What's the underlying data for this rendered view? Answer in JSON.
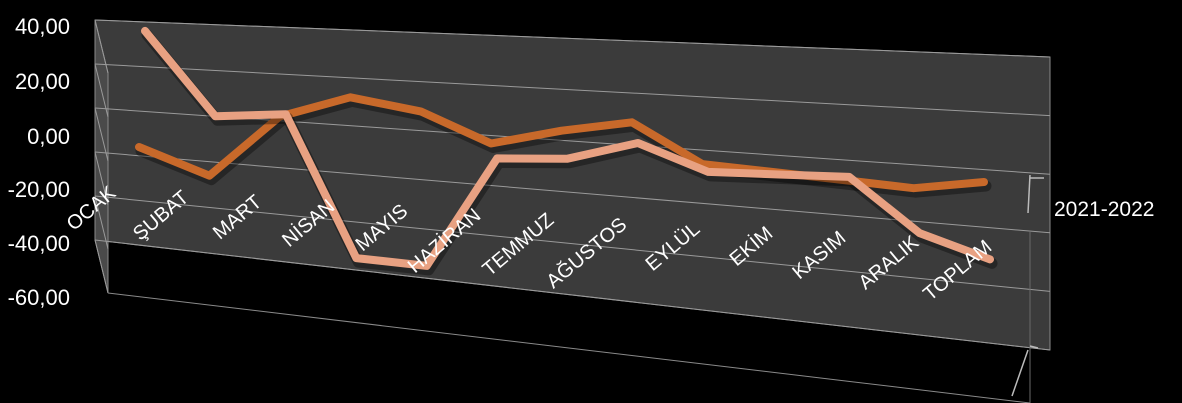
{
  "chart_data": {
    "type": "line",
    "style": "3d",
    "categories": [
      "OCAK",
      "ŞUBAT",
      "MART",
      "NİSAN",
      "MAYIS",
      "HAZİRAN",
      "TEMMUZ",
      "AĞUSTOS",
      "EYLÜL",
      "EKİM",
      "KASIM",
      "ARALIK",
      "TOPLAM"
    ],
    "y_ticks": [
      "40,00",
      "20,00",
      "0,00",
      "-20,00",
      "-40,00",
      "-60,00"
    ],
    "ylim": [
      -60,
      40
    ],
    "depth_labels": [
      "2021-2022"
    ],
    "series": [
      {
        "color": "#c8692a",
        "values": [
          -17,
          -27,
          1,
          11,
          7,
          -4,
          3,
          8,
          -6,
          -7,
          -8,
          -9,
          -5
        ]
      },
      {
        "color": "#e8a182",
        "values": [
          36,
          0,
          3,
          -55,
          -55,
          -9,
          -7,
          1,
          -8,
          -7,
          -6,
          -24,
          -31
        ]
      }
    ],
    "grid": true,
    "legend": "none"
  }
}
